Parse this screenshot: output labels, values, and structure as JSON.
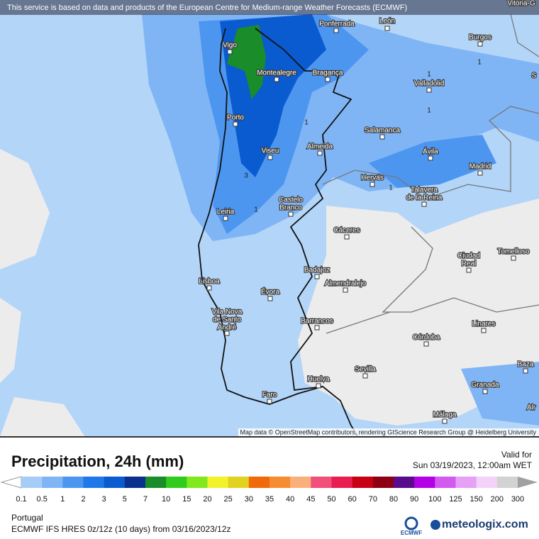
{
  "banner": "This service is based on data and products of the European Centre for Medium-range Weather Forecasts (ECMWF)",
  "attribution": "Map data © OpenStreetMap contributors, rendering GIScience Research Group @ Heidelberg University",
  "title": "Precipitation, 24h (mm)",
  "valid_label": "Valid for",
  "valid_time": "Sun 03/19/2023, 12:00am WET",
  "region": "Portugal",
  "model_info": "ECMWF IFS HRES 0z/12z (10 days) from  03/16/2023/12z",
  "logos": [
    "ECMWF",
    "meteologix.com"
  ],
  "legend": {
    "labels": [
      "0.1",
      "0.5",
      "1",
      "2",
      "3",
      "5",
      "7",
      "10",
      "15",
      "20",
      "25",
      "30",
      "35",
      "40",
      "45",
      "50",
      "60",
      "70",
      "80",
      "90",
      "100",
      "125",
      "150",
      "200",
      "300"
    ],
    "colors": [
      "#a6cdf7",
      "#7fb5f5",
      "#4d96f0",
      "#1f78e8",
      "#0a5bd0",
      "#0a2f8c",
      "#1a8c2a",
      "#2fcc1e",
      "#80e81c",
      "#f2f228",
      "#e0d21e",
      "#f06a0a",
      "#f58c32",
      "#fbb07c",
      "#f0507a",
      "#e81e50",
      "#c80014",
      "#8c0014",
      "#5a0a8c",
      "#b400e6",
      "#d25af0",
      "#e6a0f5",
      "#f5d2fa",
      "#d2d2d2"
    ]
  },
  "cities": [
    [
      "Vitoria-G"
    ],
    [
      "Ponferrada"
    ],
    [
      "León"
    ],
    [
      "Vigo"
    ],
    [
      "Montealegre"
    ],
    [
      "Bragança"
    ],
    [
      "Burgos"
    ],
    [
      "Valladolid"
    ],
    [
      "S"
    ],
    [
      "Porto"
    ],
    [
      "Salamanca"
    ],
    [
      "Viseu"
    ],
    [
      "Almeida"
    ],
    [
      "Ávila"
    ],
    [
      "Madrid"
    ],
    [
      "Hervás"
    ],
    [
      "Talavera",
      "de la Reina"
    ],
    [
      "Castelo",
      "Branco"
    ],
    [
      "Leiria"
    ],
    [
      "Cáceres"
    ],
    [
      "Ciudad",
      "Real"
    ],
    [
      "Tomelloso"
    ],
    [
      "Lisboa"
    ],
    [
      "Badajoz"
    ],
    [
      "Almendralejo"
    ],
    [
      "Évora"
    ],
    [
      "Vila Nova",
      "de Santo",
      "André"
    ],
    [
      "Barrancos"
    ],
    [
      "Linares"
    ],
    [
      "Córdoba"
    ],
    [
      "Baza"
    ],
    [
      "Sevilla"
    ],
    [
      "Huelva"
    ],
    [
      "Granada"
    ],
    [
      "Faro"
    ],
    [
      "Málaga"
    ],
    [
      "Alr"
    ]
  ],
  "contour_labels": [
    "1",
    "1",
    "1",
    "1",
    "1",
    "1",
    "3"
  ]
}
